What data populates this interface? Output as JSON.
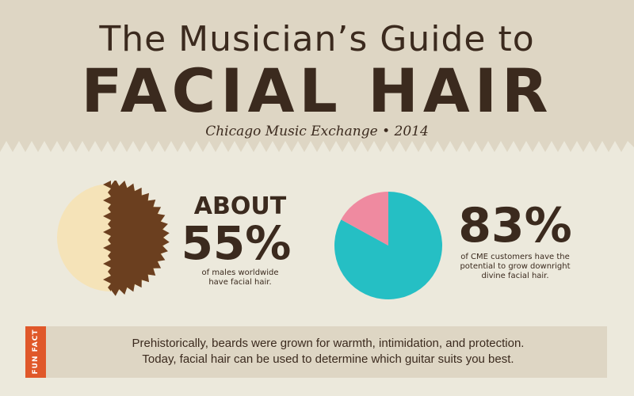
{
  "header": {
    "title_line1": "The Musician’s Guide to",
    "title_line2": "FACIAL HAIR",
    "subtitle": "Chicago Music Exchange • 2014"
  },
  "stat1": {
    "prefix": "ABOUT",
    "value": "55%",
    "caption_line1": "of males worldwide",
    "caption_line2": "have facial hair.",
    "icon": "half-beard-face-icon"
  },
  "stat2": {
    "value": "83%",
    "caption_line1": "of CME customers have the",
    "caption_line2": "potential to grow downright",
    "caption_line3": "divine facial hair.",
    "pie": {
      "type": "pie",
      "values": [
        83,
        17
      ],
      "colors": [
        "#25bfc4",
        "#ef8aa0"
      ]
    }
  },
  "fun_fact": {
    "label": "FUN FACT",
    "line1": "Prehistorically, beards were grown for warmth, intimidation, and protection.",
    "line2": "Today, facial hair can be used to determine which guitar suits you best."
  },
  "colors": {
    "header_bg": "#ded6c4",
    "body_bg": "#ece9dc",
    "text": "#3b2a1e",
    "accent": "#e0582a",
    "skin": "#f5e3b8",
    "beard": "#6b3f1f"
  }
}
